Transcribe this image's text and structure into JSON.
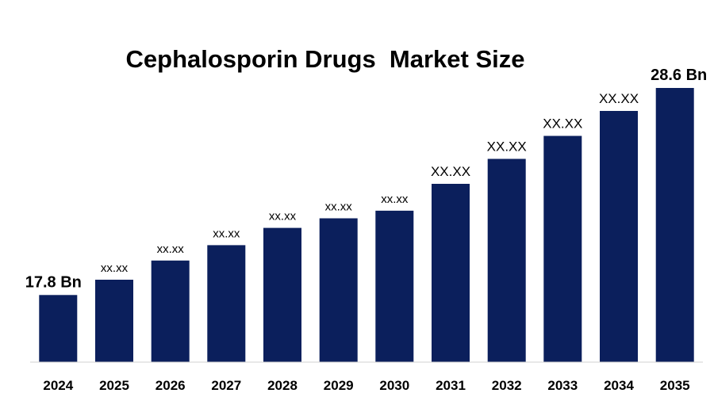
{
  "chart_data": {
    "type": "bar",
    "title": "Cephalosporin Drugs  Market Size",
    "xlabel": "",
    "ylabel": "",
    "categories": [
      "2024",
      "2025",
      "2026",
      "2027",
      "2028",
      "2029",
      "2030",
      "2031",
      "2032",
      "2033",
      "2034",
      "2035"
    ],
    "values": [
      17.8,
      18.6,
      19.6,
      20.4,
      21.3,
      21.8,
      22.2,
      23.6,
      24.9,
      26.1,
      27.4,
      28.6
    ],
    "data_labels": [
      "17.8 Bn",
      "xx.xx",
      "xx.xx",
      "xx.xx",
      "xx.xx",
      "xx.xx",
      "xx.xx",
      "XX.XX",
      "XX.XX",
      "XX.XX",
      "XX.XX",
      "28.6 Bn"
    ],
    "ylim": [
      14.3,
      28.6
    ],
    "grid": false,
    "legend": "none",
    "bar_color": "#0b1f5c",
    "axis_color": "#d0d0d0"
  }
}
